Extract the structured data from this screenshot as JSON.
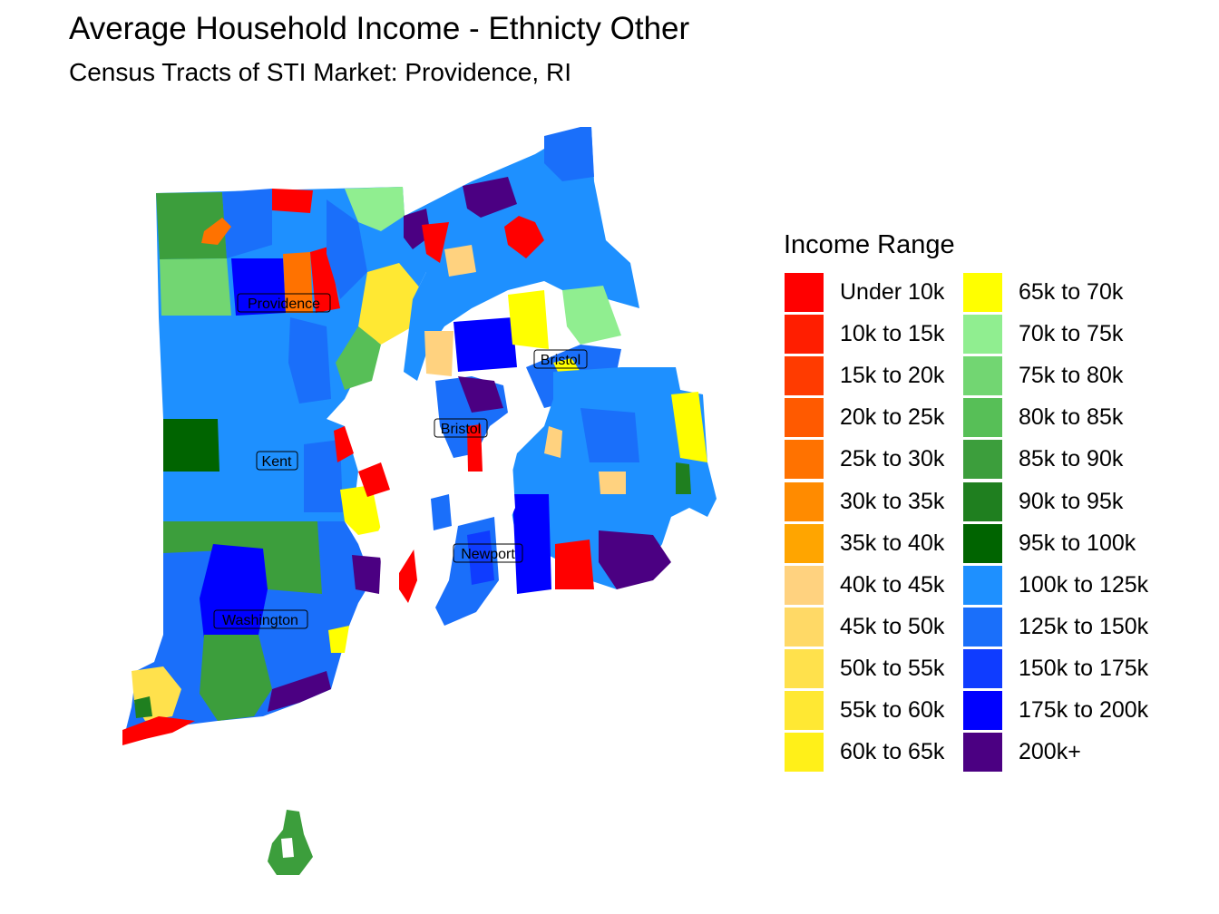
{
  "title": "Average Household Income - Ethnicty Other",
  "subtitle": "Census Tracts of STI Market: Providence, RI",
  "legend": {
    "title": "Income Range",
    "items": [
      {
        "label": "Under 10k",
        "color": "#ff0000"
      },
      {
        "label": "10k to 15k",
        "color": "#ff1e00"
      },
      {
        "label": "15k to 20k",
        "color": "#ff3b00"
      },
      {
        "label": "20k to 25k",
        "color": "#ff5a00"
      },
      {
        "label": "25k to 30k",
        "color": "#ff7200"
      },
      {
        "label": "30k to 35k",
        "color": "#ff8b00"
      },
      {
        "label": "35k to 40k",
        "color": "#ffa500"
      },
      {
        "label": "40k to 45k",
        "color": "#ffd27f"
      },
      {
        "label": "45k to 50k",
        "color": "#ffd966"
      },
      {
        "label": "50k to 55k",
        "color": "#ffe14c"
      },
      {
        "label": "55k to 60k",
        "color": "#ffe833"
      },
      {
        "label": "60k to 65k",
        "color": "#fff019"
      },
      {
        "label": "65k to 70k",
        "color": "#ffff00"
      },
      {
        "label": "70k to 75k",
        "color": "#90ee90"
      },
      {
        "label": "75k to 80k",
        "color": "#72d672"
      },
      {
        "label": "80k to 85k",
        "color": "#57bf57"
      },
      {
        "label": "85k to 90k",
        "color": "#3c9e3c"
      },
      {
        "label": "90k to 95k",
        "color": "#1f7f1f"
      },
      {
        "label": "95k to 100k",
        "color": "#006400"
      },
      {
        "label": "100k to 125k",
        "color": "#1e90ff"
      },
      {
        "label": "125k to 150k",
        "color": "#1a6ffa"
      },
      {
        "label": "150k to 175k",
        "color": "#0f3cff"
      },
      {
        "label": "175k to 200k",
        "color": "#0000ff"
      },
      {
        "label": "200k+",
        "color": "#4b0082"
      }
    ]
  },
  "county_labels": [
    "Providence",
    "Bristol",
    "Kent",
    "Bristol",
    "Newport",
    "Washington"
  ]
}
